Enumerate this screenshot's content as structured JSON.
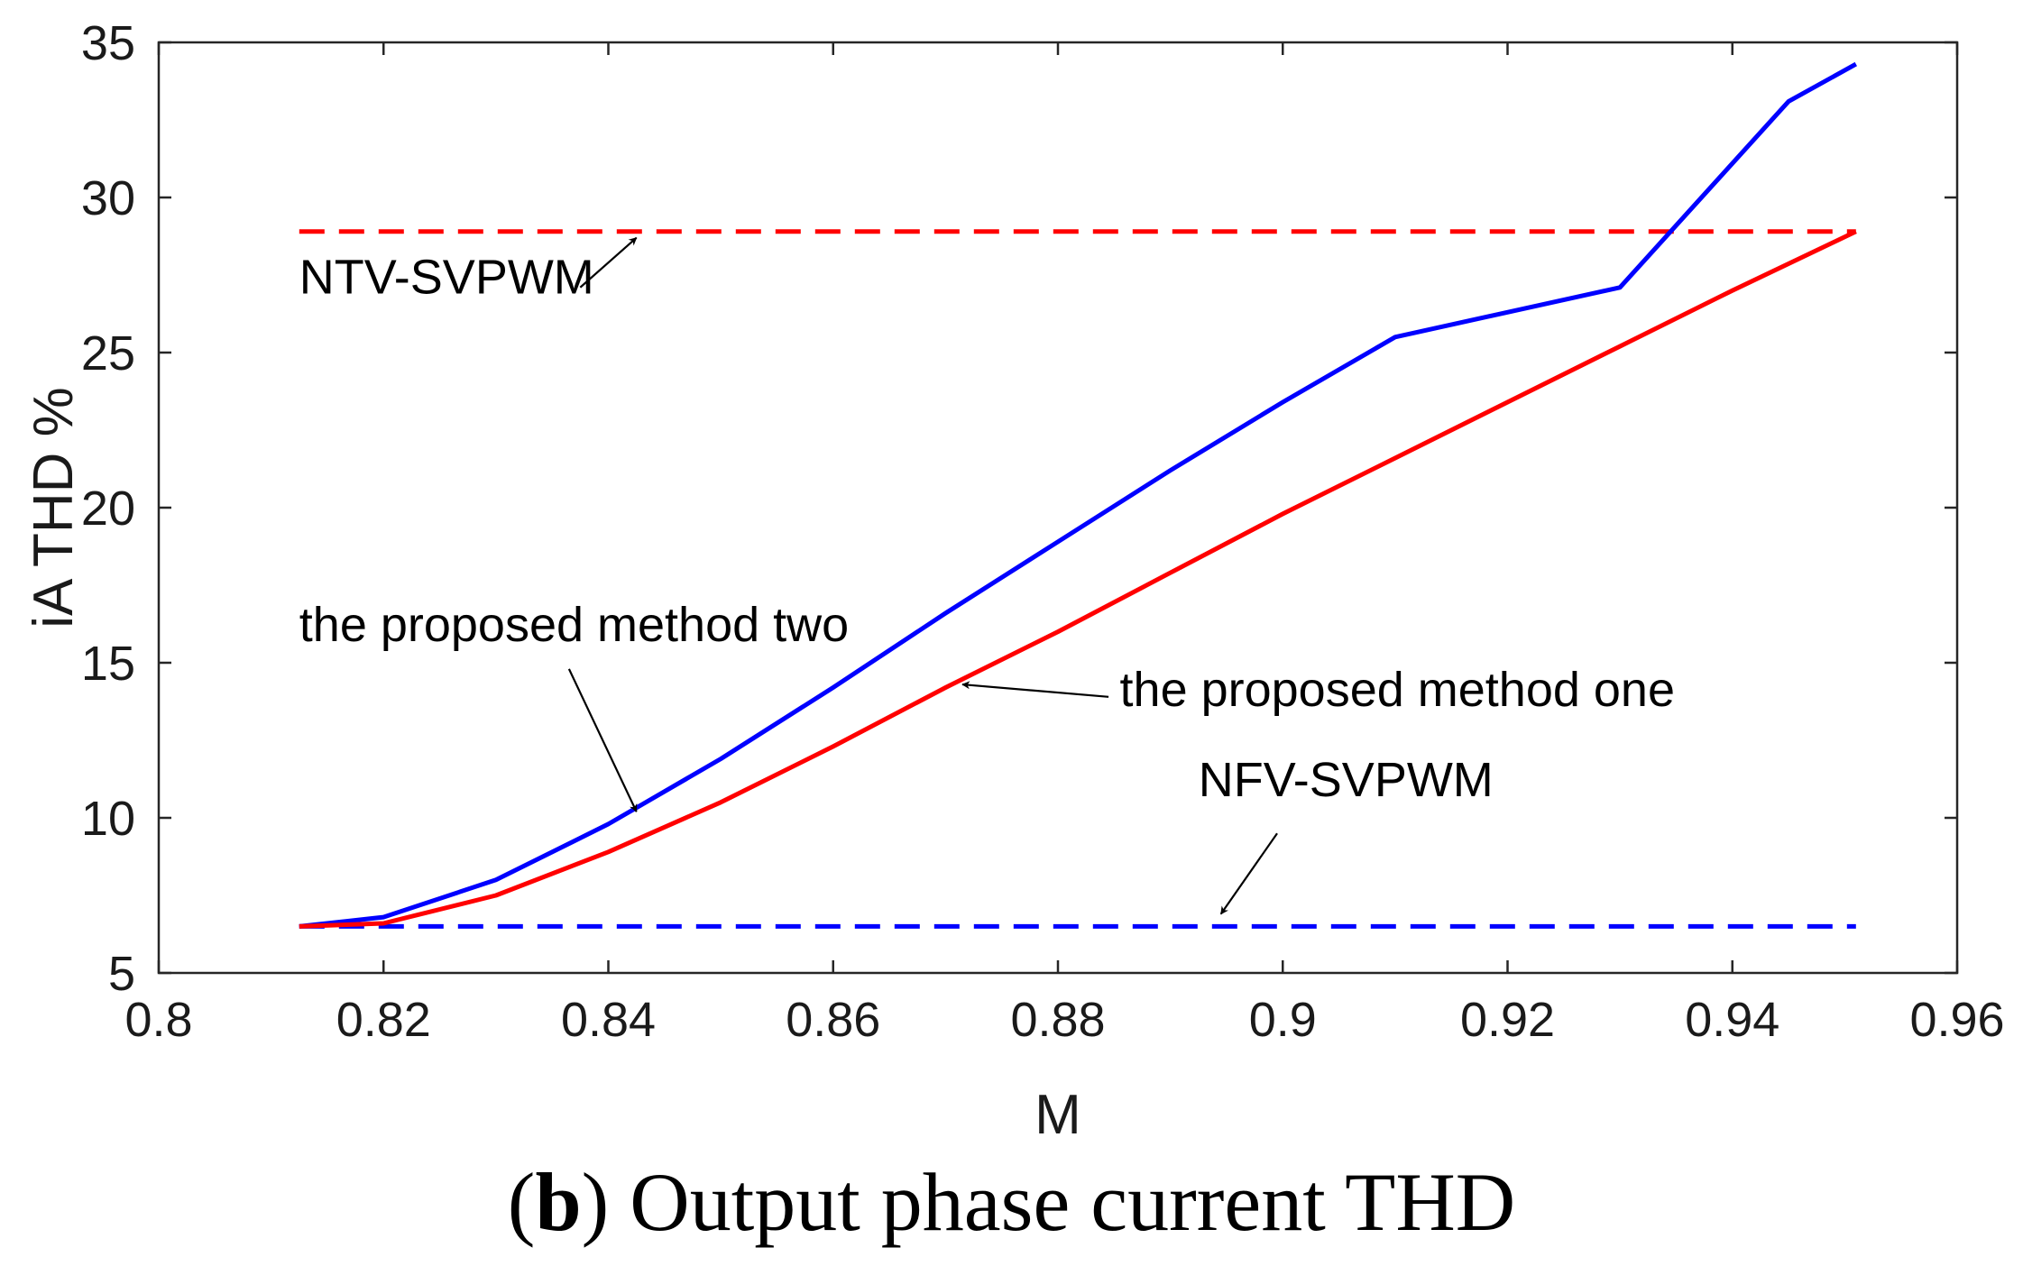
{
  "chart_data": {
    "type": "line",
    "xlabel": "M",
    "ylabel": "iA THD %",
    "xlim": [
      0.8,
      0.96
    ],
    "ylim": [
      5,
      35
    ],
    "xticks": [
      0.8,
      0.82,
      0.84,
      0.86,
      0.88,
      0.9,
      0.92,
      0.94,
      0.96
    ],
    "xtick_labels": [
      "0.8",
      "0.82",
      "0.84",
      "0.86",
      "0.88",
      "0.9",
      "0.92",
      "0.94",
      "0.96"
    ],
    "yticks": [
      5,
      10,
      15,
      20,
      25,
      30,
      35
    ],
    "ytick_labels": [
      "5",
      "10",
      "15",
      "20",
      "25",
      "30",
      "35"
    ],
    "grid": false,
    "series": [
      {
        "name": "NTV-SVPWM",
        "color": "#ff0000",
        "dash": "dashed",
        "x": [
          0.8125,
          0.951
        ],
        "y": [
          28.9,
          28.9
        ]
      },
      {
        "name": "NFV-SVPWM",
        "color": "#0000ff",
        "dash": "dashed",
        "x": [
          0.8125,
          0.951
        ],
        "y": [
          6.5,
          6.5
        ]
      },
      {
        "name": "the proposed method two",
        "color": "#0000ff",
        "dash": "solid",
        "x": [
          0.8125,
          0.82,
          0.83,
          0.84,
          0.85,
          0.86,
          0.87,
          0.88,
          0.89,
          0.9,
          0.91,
          0.93,
          0.945,
          0.951
        ],
        "y": [
          6.5,
          6.8,
          8.0,
          9.8,
          11.9,
          14.2,
          16.6,
          18.9,
          21.2,
          23.4,
          25.5,
          27.1,
          33.1,
          34.3
        ]
      },
      {
        "name": "the proposed method one",
        "color": "#ff0000",
        "dash": "solid",
        "x": [
          0.8125,
          0.82,
          0.83,
          0.84,
          0.85,
          0.86,
          0.87,
          0.88,
          0.89,
          0.9,
          0.91,
          0.92,
          0.93,
          0.94,
          0.951
        ],
        "y": [
          6.5,
          6.6,
          7.5,
          8.9,
          10.5,
          12.3,
          14.2,
          16.0,
          17.9,
          19.8,
          21.6,
          23.4,
          25.2,
          27.0,
          28.9
        ]
      }
    ],
    "annotations": [
      {
        "text": "NTV-SVPWM",
        "x": 0.8125,
        "y": 26.9,
        "arrow_from": [
          0.8375,
          27.1
        ],
        "arrow_to": [
          0.8425,
          28.7
        ]
      },
      {
        "text": "the proposed method two",
        "x": 0.8125,
        "y": 15.7,
        "arrow_from": [
          0.8365,
          14.8
        ],
        "arrow_to": [
          0.8425,
          10.2
        ]
      },
      {
        "text": "the proposed method one",
        "x": 0.8855,
        "y": 13.6,
        "arrow_from": [
          0.8845,
          13.9
        ],
        "arrow_to": [
          0.8715,
          14.3
        ]
      },
      {
        "text": "NFV-SVPWM",
        "x": 0.8925,
        "y": 10.7,
        "arrow_from": [
          0.8995,
          9.5
        ],
        "arrow_to": [
          0.8945,
          6.9
        ]
      }
    ]
  },
  "caption": {
    "label": "b",
    "text": " Output phase current THD"
  }
}
